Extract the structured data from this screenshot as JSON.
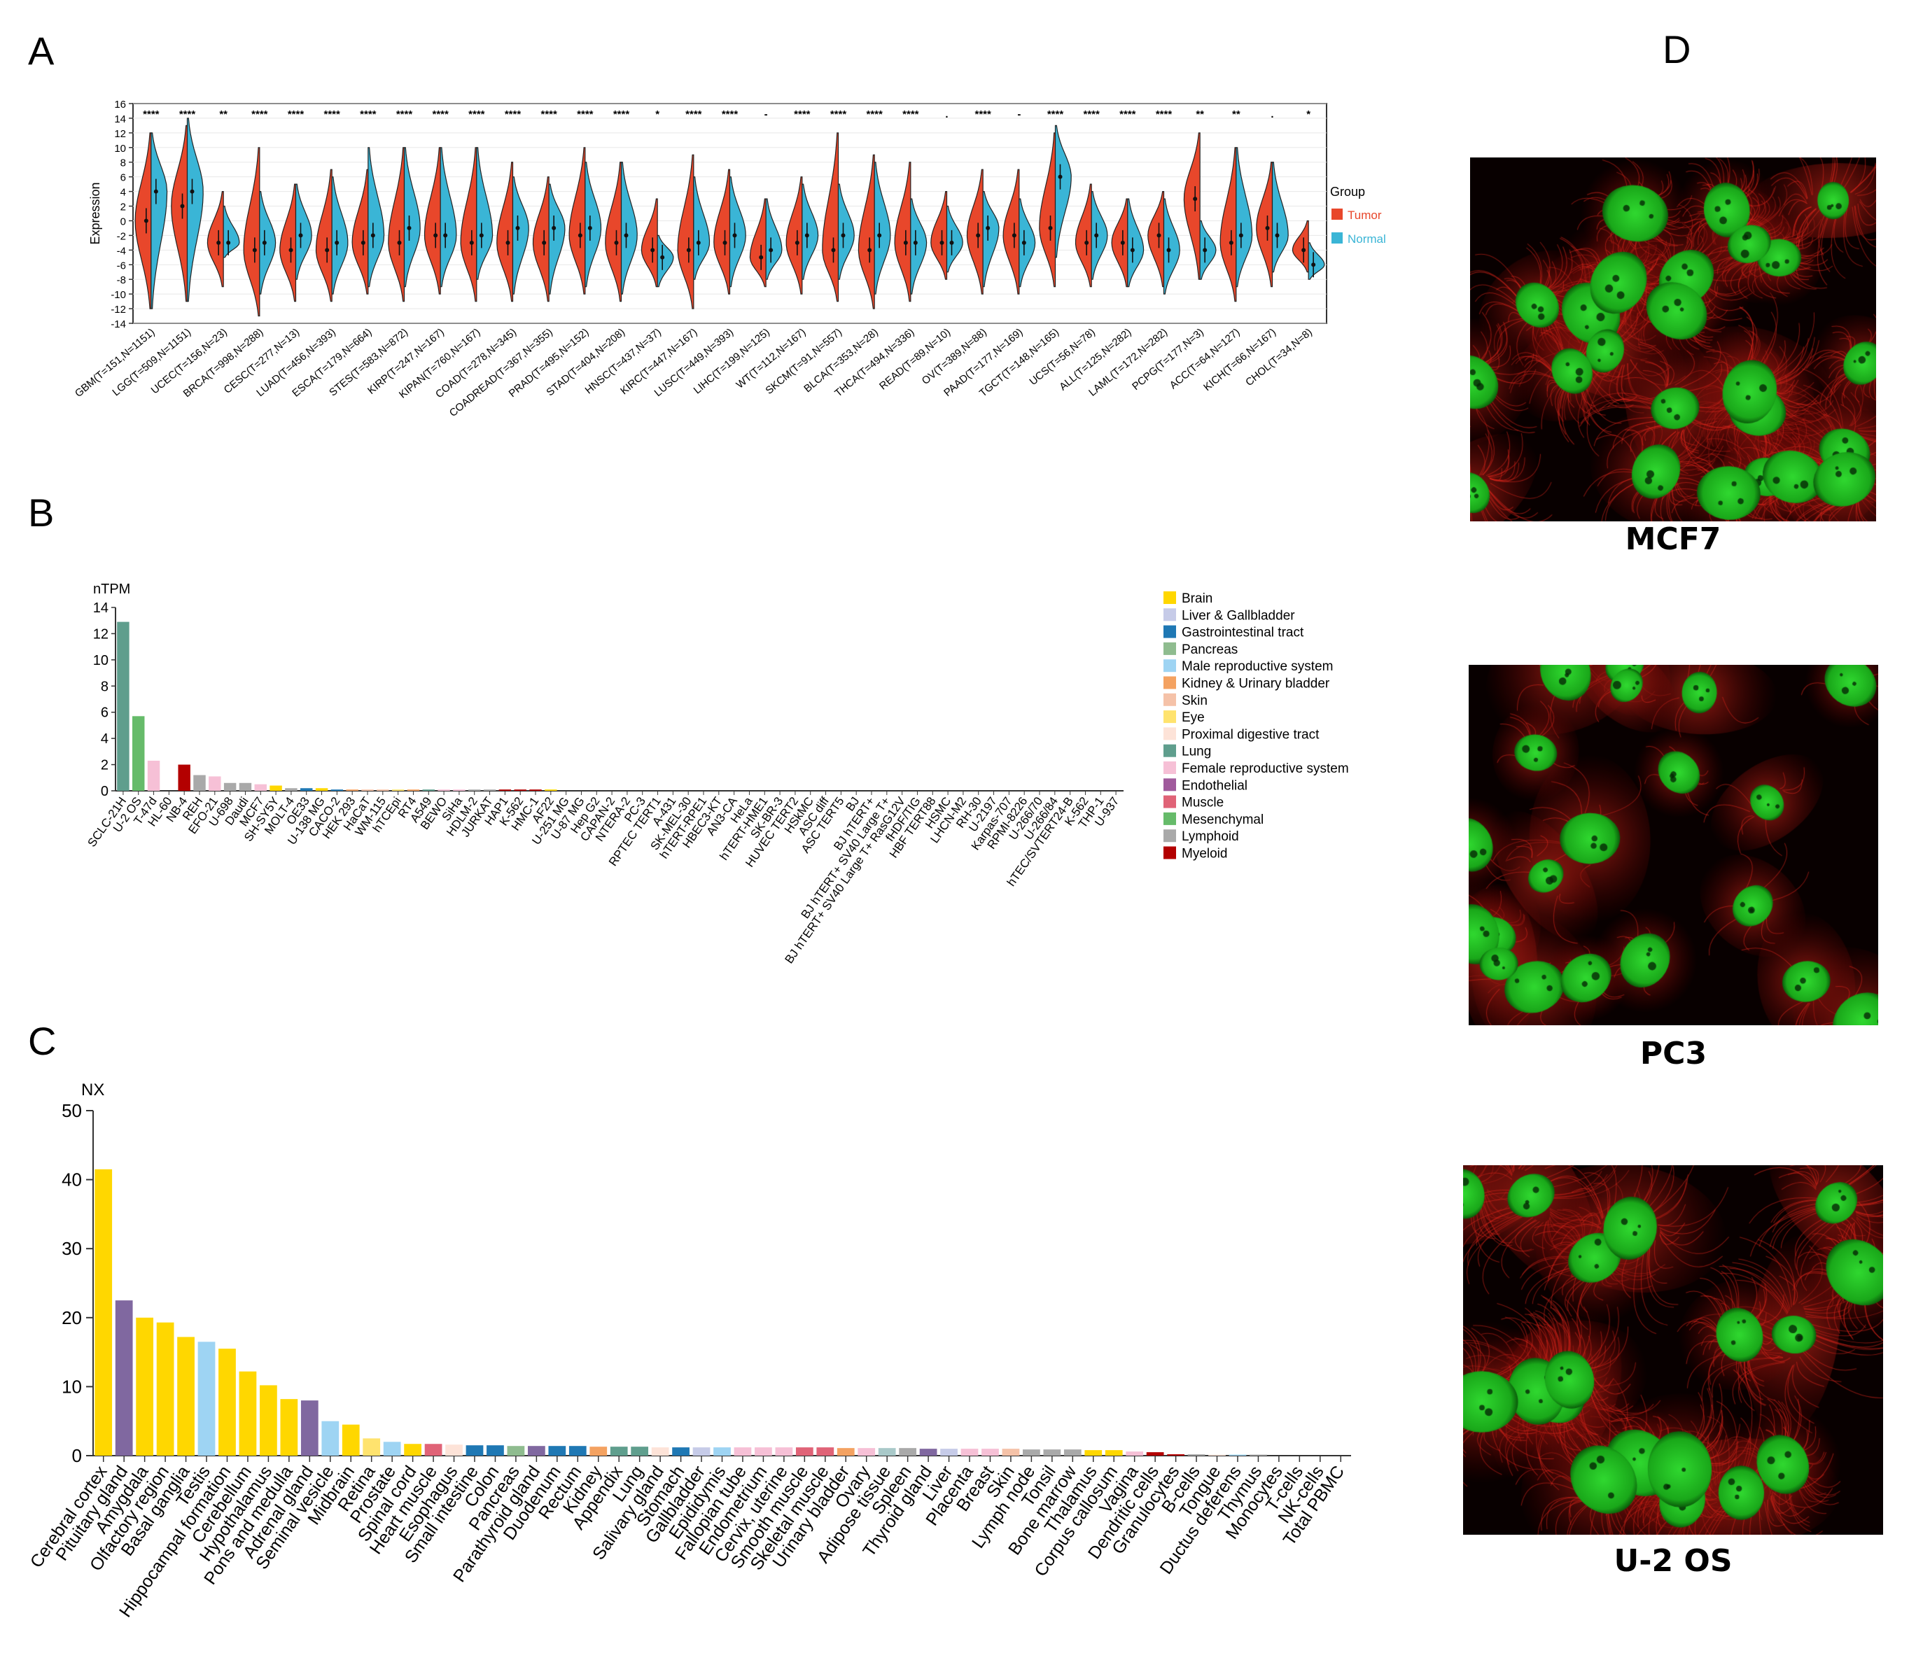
{
  "panels": {
    "A": "A",
    "B": "B",
    "C": "C",
    "D": "D"
  },
  "chart_data": [
    {
      "id": "A",
      "type": "violin",
      "ylabel": "Expression",
      "ylim": [
        -14,
        16
      ],
      "yticks": [
        16,
        14,
        12,
        10,
        8,
        6,
        4,
        2,
        0,
        -2,
        -4,
        -6,
        -8,
        -10,
        -12,
        -14
      ],
      "legend_title": "Group",
      "legend": [
        "Tumor",
        "Normal"
      ],
      "colors": {
        "tumor": "#e8472b",
        "normal": "#3ab5d6"
      },
      "categories": [
        "GBM(T=151,N=1151)",
        "LGG(T=509,N=1151)",
        "UCEC(T=156,N=23)",
        "BRCA(T=998,N=288)",
        "CESC(T=277,N=13)",
        "LUAD(T=456,N=393)",
        "ESCA(T=179,N=664)",
        "STES(T=583,N=872)",
        "KIRP(T=247,N=167)",
        "KIPAN(T=760,N=167)",
        "COAD(T=278,N=345)",
        "COADREAD(T=367,N=355)",
        "PRAD(T=495,N=152)",
        "STAD(T=404,N=208)",
        "HNSC(T=437,N=37)",
        "KIRC(T=447,N=167)",
        "LUSC(T=449,N=393)",
        "LIHC(T=199,N=125)",
        "WT(T=112,N=167)",
        "SKCM(T=91,N=557)",
        "BLCA(T=353,N=28)",
        "THCA(T=494,N=336)",
        "READ(T=89,N=10)",
        "OV(T=389,N=88)",
        "PAAD(T=177,N=169)",
        "TGCT(T=148,N=165)",
        "UCS(T=56,N=78)",
        "ALL(T=125,N=282)",
        "LAML(T=172,N=282)",
        "PCPG(T=177,N=3)",
        "ACC(T=64,N=127)",
        "KICH(T=66,N=167)",
        "CHOL(T=34,N=8)"
      ],
      "significance": [
        "****",
        "****",
        "**",
        "****",
        "****",
        "****",
        "****",
        "****",
        "****",
        "****",
        "****",
        "****",
        "****",
        "****",
        "*",
        "****",
        "****",
        "-",
        "****",
        "****",
        "****",
        "****",
        ".",
        "****",
        "-",
        "****",
        "****",
        "****",
        "****",
        "**",
        "**",
        ".",
        "*"
      ],
      "tumor_median": [
        0,
        2,
        -3,
        -4,
        -4,
        -4,
        -3,
        -3,
        -2,
        -3,
        -3,
        -3,
        -2,
        -3,
        -4,
        -4,
        -3,
        -5,
        -3,
        -4,
        -4,
        -3,
        -3,
        -2,
        -2,
        -1,
        -3,
        -3,
        -2,
        3,
        -3,
        -1,
        -4
      ],
      "normal_median": [
        4,
        4,
        -3,
        -3,
        -2,
        -3,
        -2,
        -1,
        -2,
        -2,
        -1,
        -1,
        -1,
        -2,
        -5,
        -3,
        -2,
        -4,
        -2,
        -2,
        -2,
        -3,
        -3,
        -1,
        -3,
        6,
        -2,
        -4,
        -4,
        -4,
        -2,
        -2,
        -6
      ],
      "tumor_range": [
        [
          -12,
          12
        ],
        [
          -11,
          13
        ],
        [
          -9,
          4
        ],
        [
          -13,
          10
        ],
        [
          -11,
          5
        ],
        [
          -11,
          7
        ],
        [
          -10,
          7
        ],
        [
          -11,
          10
        ],
        [
          -10,
          10
        ],
        [
          -11,
          10
        ],
        [
          -11,
          8
        ],
        [
          -11,
          6
        ],
        [
          -10,
          10
        ],
        [
          -11,
          8
        ],
        [
          -9,
          3
        ],
        [
          -12,
          9
        ],
        [
          -10,
          7
        ],
        [
          -9,
          3
        ],
        [
          -10,
          6
        ],
        [
          -11,
          12
        ],
        [
          -12,
          9
        ],
        [
          -11,
          8
        ],
        [
          -8,
          4
        ],
        [
          -10,
          7
        ],
        [
          -10,
          7
        ],
        [
          -9,
          12
        ],
        [
          -9,
          5
        ],
        [
          -9,
          3
        ],
        [
          -9,
          4
        ],
        [
          -8,
          12
        ],
        [
          -11,
          10
        ],
        [
          -9,
          8
        ],
        [
          -7,
          0
        ]
      ],
      "normal_range": [
        [
          -12,
          12
        ],
        [
          -11,
          14
        ],
        [
          -5,
          2
        ],
        [
          -10,
          4
        ],
        [
          -8,
          5
        ],
        [
          -10,
          6
        ],
        [
          -9,
          10
        ],
        [
          -9,
          10
        ],
        [
          -9,
          10
        ],
        [
          -8,
          10
        ],
        [
          -10,
          6
        ],
        [
          -10,
          5
        ],
        [
          -9,
          8
        ],
        [
          -10,
          8
        ],
        [
          -9,
          -2
        ],
        [
          -8,
          6
        ],
        [
          -9,
          6
        ],
        [
          -8,
          3
        ],
        [
          -8,
          5
        ],
        [
          -8,
          5
        ],
        [
          -10,
          8
        ],
        [
          -10,
          3
        ],
        [
          -7,
          2
        ],
        [
          -9,
          4
        ],
        [
          -9,
          3
        ],
        [
          -5,
          13
        ],
        [
          -8,
          4
        ],
        [
          -9,
          3
        ],
        [
          -10,
          3
        ],
        [
          -8,
          0
        ],
        [
          -9,
          10
        ],
        [
          -7,
          8
        ],
        [
          -8,
          -3
        ]
      ]
    },
    {
      "id": "B",
      "type": "bar",
      "ylabel": "nTPM",
      "ylim": [
        0,
        14
      ],
      "yticks": [
        0,
        2,
        4,
        6,
        8,
        10,
        12,
        14
      ],
      "categories": [
        "SCLC-21H",
        "U-2 OS",
        "T-47d",
        "HL-60",
        "NB-4",
        "REH",
        "EFO-21",
        "U-698",
        "Daudi",
        "MCF7",
        "SH-SY5Y",
        "MOLT-4",
        "OE33",
        "U-138 MG",
        "CACO-2",
        "HEK 293",
        "HaCaT",
        "WM-115",
        "hTCEpi",
        "RT4",
        "A549",
        "BEWO",
        "SiHa",
        "HDLM-2",
        "JURKAT",
        "HAP1",
        "K-562",
        "HMC-1",
        "AF22",
        "U-251 MG",
        "U-87 MG",
        "Hep G2",
        "CAPAN-2",
        "NTERA-2",
        "PC-3",
        "RPTEC TERT1",
        "A-431",
        "SK-MEL-30",
        "hTERT-RPE1",
        "HBEC3-KT",
        "AN3-CA",
        "HeLa",
        "hTERT-HME1",
        "SK-BR-3",
        "HUVEC TERT2",
        "HSkMC",
        "ASC diff",
        "ASC TERT5",
        "BJ",
        "BJ hTERT+",
        "BJ hTERT+ SV40 Large T+",
        "BJ hTERT+ SV40 Large T+ RasG12V",
        "fHDF/TIG",
        "HBF TERT88",
        "HSMC",
        "LHCN-M2",
        "RH-30",
        "U-2197",
        "Karpas-707",
        "RPMI-8226",
        "U-266/70",
        "U-266/84",
        "hTEC/SVTERT24-B",
        "K-562",
        "THP-1",
        "U-937"
      ],
      "values": [
        12.9,
        5.7,
        2.3,
        0,
        2.0,
        1.2,
        1.1,
        0.6,
        0.6,
        0.5,
        0.4,
        0.2,
        0.2,
        0.2,
        0.1,
        0.1,
        0.1,
        0.1,
        0.1,
        0.1,
        0.1,
        0.1,
        0.1,
        0.1,
        0.1,
        0.1,
        0.1,
        0.1,
        0.1,
        0,
        0,
        0,
        0,
        0,
        0,
        0,
        0,
        0,
        0,
        0,
        0,
        0,
        0,
        0,
        0,
        0,
        0,
        0,
        0,
        0,
        0,
        0,
        0,
        0,
        0,
        0,
        0,
        0,
        0,
        0,
        0,
        0,
        0,
        0,
        0,
        0
      ],
      "groups": [
        "Lung",
        "Mesenchymal",
        "Female reproductive system",
        "Myeloid",
        "Myeloid",
        "Lymphoid",
        "Female reproductive system",
        "Lymphoid",
        "Lymphoid",
        "Female reproductive system",
        "Brain",
        "Lymphoid",
        "Gastrointestinal tract",
        "Brain",
        "Gastrointestinal tract",
        "Kidney & Urinary bladder",
        "Skin",
        "Skin",
        "Eye",
        "Kidney & Urinary bladder",
        "Lung",
        "Female reproductive system",
        "Female reproductive system",
        "Lymphoid",
        "Lymphoid",
        "Myeloid",
        "Myeloid",
        "Myeloid",
        "Brain",
        "Brain",
        "Brain",
        "Liver & Gallbladder",
        "Pancreas",
        "Male reproductive system",
        "Male reproductive system",
        "Kidney & Urinary bladder",
        "Skin",
        "Skin",
        "Eye",
        "Lung",
        "Female reproductive system",
        "Female reproductive system",
        "Female reproductive system",
        "Female reproductive system",
        "Endothelial",
        "Muscle",
        "Mesenchymal",
        "Mesenchymal",
        "Mesenchymal",
        "Mesenchymal",
        "Mesenchymal",
        "Mesenchymal",
        "Mesenchymal",
        "Mesenchymal",
        "Muscle",
        "Muscle",
        "Muscle",
        "Lymphoid",
        "Lymphoid",
        "Lymphoid",
        "Lymphoid",
        "Lymphoid",
        "Kidney & Urinary bladder",
        "Myeloid",
        "Myeloid",
        "Myeloid"
      ],
      "legend": [
        {
          "label": "Brain",
          "color": "#ffd700"
        },
        {
          "label": "Liver & Gallbladder",
          "color": "#c6cbe8"
        },
        {
          "label": "Gastrointestinal tract",
          "color": "#1f78b4"
        },
        {
          "label": "Pancreas",
          "color": "#8fbc8f"
        },
        {
          "label": "Male reproductive system",
          "color": "#9ed4f3"
        },
        {
          "label": "Kidney & Urinary bladder",
          "color": "#f4a261"
        },
        {
          "label": "Skin",
          "color": "#f5c2a8"
        },
        {
          "label": "Eye",
          "color": "#ffe36e"
        },
        {
          "label": "Proximal digestive tract",
          "color": "#fde3d8"
        },
        {
          "label": "Lung",
          "color": "#5f9e8d"
        },
        {
          "label": "Female reproductive system",
          "color": "#f6c0d6"
        },
        {
          "label": "Endothelial",
          "color": "#a05a9c"
        },
        {
          "label": "Muscle",
          "color": "#e06377"
        },
        {
          "label": "Mesenchymal",
          "color": "#66bb6a"
        },
        {
          "label": "Lymphoid",
          "color": "#a9a9a9"
        },
        {
          "label": "Myeloid",
          "color": "#b30000"
        }
      ]
    },
    {
      "id": "C",
      "type": "bar",
      "ylabel": "NX",
      "ylim": [
        0,
        50
      ],
      "yticks": [
        0,
        10,
        20,
        30,
        40,
        50
      ],
      "categories": [
        "Cerebral cortex",
        "Pituitary gland",
        "Amygdala",
        "Olfactory region",
        "Basal ganglia",
        "Testis",
        "Hippocampal formation",
        "Cerebellum",
        "Hypothalamus",
        "Pons and medulla",
        "Adrenal gland",
        "Seminal vesicle",
        "Midbrain",
        "Retina",
        "Prostate",
        "Spinal cord",
        "Heart muscle",
        "Esophagus",
        "Small intestine",
        "Colon",
        "Pancreas",
        "Parathyroid gland",
        "Duodenum",
        "Rectum",
        "Kidney",
        "Appendix",
        "Lung",
        "Salivary gland",
        "Stomach",
        "Gallbladder",
        "Epididymis",
        "Fallopian tube",
        "Endometrium",
        "Cervix, uterine",
        "Smooth muscle",
        "Skeletal muscle",
        "Urinary bladder",
        "Ovary",
        "Adipose tissue",
        "Spleen",
        "Thyroid gland",
        "Liver",
        "Placenta",
        "Breast",
        "Skin",
        "Lymph node",
        "Tonsil",
        "Bone marrow",
        "Thalamus",
        "Corpus callosum",
        "Vagina",
        "Dendritic cells",
        "Granulocytes",
        "B-cells",
        "Tongue",
        "Ductus deferens",
        "Thymus",
        "Monocytes",
        "T-cells",
        "NK-cells",
        "Total PBMC"
      ],
      "values": [
        41.5,
        22.5,
        20.0,
        19.3,
        17.2,
        16.5,
        15.5,
        12.2,
        10.2,
        8.2,
        8.0,
        5.0,
        4.5,
        2.5,
        2.0,
        1.7,
        1.7,
        1.6,
        1.5,
        1.5,
        1.4,
        1.4,
        1.4,
        1.4,
        1.3,
        1.3,
        1.3,
        1.2,
        1.2,
        1.2,
        1.2,
        1.2,
        1.2,
        1.2,
        1.2,
        1.2,
        1.1,
        1.1,
        1.1,
        1.1,
        1.0,
        1.0,
        1.0,
        1.0,
        1.0,
        0.9,
        0.9,
        0.9,
        0.8,
        0.8,
        0.6,
        0.5,
        0.2,
        0.2,
        0.1,
        0.1,
        0.1,
        0,
        0,
        0,
        0
      ],
      "colors": [
        "#ffd700",
        "#8068a0",
        "#ffd700",
        "#ffd700",
        "#ffd700",
        "#9ed4f3",
        "#ffd700",
        "#ffd700",
        "#ffd700",
        "#ffd700",
        "#8068a0",
        "#9ed4f3",
        "#ffd700",
        "#ffe36e",
        "#9ed4f3",
        "#ffd700",
        "#e06377",
        "#fde3d8",
        "#1f78b4",
        "#1f78b4",
        "#8fbc8f",
        "#8068a0",
        "#1f78b4",
        "#1f78b4",
        "#f4a261",
        "#5f9e8d",
        "#5f9e8d",
        "#fde3d8",
        "#1f78b4",
        "#c6cbe8",
        "#9ed4f3",
        "#f6c0d6",
        "#f6c0d6",
        "#f6c0d6",
        "#e06377",
        "#e06377",
        "#f4a261",
        "#f6c0d6",
        "#a9c9c9",
        "#a9a9a9",
        "#8068a0",
        "#c6cbe8",
        "#f6c0d6",
        "#f6c0d6",
        "#f5c2a8",
        "#a9a9a9",
        "#a9a9a9",
        "#a9a9a9",
        "#ffd700",
        "#ffd700",
        "#f6c0d6",
        "#b30000",
        "#b30000",
        "#a9a9a9",
        "#fde3d8",
        "#9ed4f3",
        "#a9a9a9",
        "#b30000",
        "#a9a9a9",
        "#a9a9a9",
        "#a9a9a9"
      ]
    }
  ],
  "images": [
    {
      "id": "mcf7",
      "caption": "MCF7"
    },
    {
      "id": "pc3",
      "caption": "PC3"
    },
    {
      "id": "u2os",
      "caption": "U-2 OS"
    }
  ]
}
